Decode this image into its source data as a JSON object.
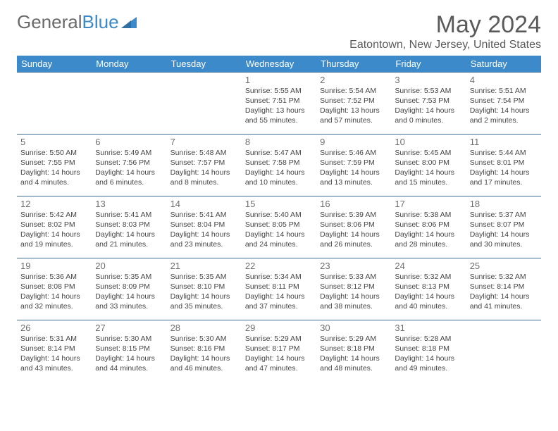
{
  "logo": {
    "text_gray": "General",
    "text_blue": "Blue"
  },
  "title": "May 2024",
  "location": "Eatontown, New Jersey, United States",
  "colors": {
    "header_bg": "#3c8ac9",
    "header_text": "#ffffff",
    "border": "#3c6c94",
    "body_text": "#454545",
    "muted": "#6f6f6f",
    "logo_gray": "#6a6a6a",
    "logo_blue": "#3c8ac9"
  },
  "day_headers": [
    "Sunday",
    "Monday",
    "Tuesday",
    "Wednesday",
    "Thursday",
    "Friday",
    "Saturday"
  ],
  "weeks": [
    [
      null,
      null,
      null,
      {
        "n": "1",
        "sr": "5:55 AM",
        "ss": "7:51 PM",
        "dl": "13 hours and 55 minutes."
      },
      {
        "n": "2",
        "sr": "5:54 AM",
        "ss": "7:52 PM",
        "dl": "13 hours and 57 minutes."
      },
      {
        "n": "3",
        "sr": "5:53 AM",
        "ss": "7:53 PM",
        "dl": "14 hours and 0 minutes."
      },
      {
        "n": "4",
        "sr": "5:51 AM",
        "ss": "7:54 PM",
        "dl": "14 hours and 2 minutes."
      }
    ],
    [
      {
        "n": "5",
        "sr": "5:50 AM",
        "ss": "7:55 PM",
        "dl": "14 hours and 4 minutes."
      },
      {
        "n": "6",
        "sr": "5:49 AM",
        "ss": "7:56 PM",
        "dl": "14 hours and 6 minutes."
      },
      {
        "n": "7",
        "sr": "5:48 AM",
        "ss": "7:57 PM",
        "dl": "14 hours and 8 minutes."
      },
      {
        "n": "8",
        "sr": "5:47 AM",
        "ss": "7:58 PM",
        "dl": "14 hours and 10 minutes."
      },
      {
        "n": "9",
        "sr": "5:46 AM",
        "ss": "7:59 PM",
        "dl": "14 hours and 13 minutes."
      },
      {
        "n": "10",
        "sr": "5:45 AM",
        "ss": "8:00 PM",
        "dl": "14 hours and 15 minutes."
      },
      {
        "n": "11",
        "sr": "5:44 AM",
        "ss": "8:01 PM",
        "dl": "14 hours and 17 minutes."
      }
    ],
    [
      {
        "n": "12",
        "sr": "5:42 AM",
        "ss": "8:02 PM",
        "dl": "14 hours and 19 minutes."
      },
      {
        "n": "13",
        "sr": "5:41 AM",
        "ss": "8:03 PM",
        "dl": "14 hours and 21 minutes."
      },
      {
        "n": "14",
        "sr": "5:41 AM",
        "ss": "8:04 PM",
        "dl": "14 hours and 23 minutes."
      },
      {
        "n": "15",
        "sr": "5:40 AM",
        "ss": "8:05 PM",
        "dl": "14 hours and 24 minutes."
      },
      {
        "n": "16",
        "sr": "5:39 AM",
        "ss": "8:06 PM",
        "dl": "14 hours and 26 minutes."
      },
      {
        "n": "17",
        "sr": "5:38 AM",
        "ss": "8:06 PM",
        "dl": "14 hours and 28 minutes."
      },
      {
        "n": "18",
        "sr": "5:37 AM",
        "ss": "8:07 PM",
        "dl": "14 hours and 30 minutes."
      }
    ],
    [
      {
        "n": "19",
        "sr": "5:36 AM",
        "ss": "8:08 PM",
        "dl": "14 hours and 32 minutes."
      },
      {
        "n": "20",
        "sr": "5:35 AM",
        "ss": "8:09 PM",
        "dl": "14 hours and 33 minutes."
      },
      {
        "n": "21",
        "sr": "5:35 AM",
        "ss": "8:10 PM",
        "dl": "14 hours and 35 minutes."
      },
      {
        "n": "22",
        "sr": "5:34 AM",
        "ss": "8:11 PM",
        "dl": "14 hours and 37 minutes."
      },
      {
        "n": "23",
        "sr": "5:33 AM",
        "ss": "8:12 PM",
        "dl": "14 hours and 38 minutes."
      },
      {
        "n": "24",
        "sr": "5:32 AM",
        "ss": "8:13 PM",
        "dl": "14 hours and 40 minutes."
      },
      {
        "n": "25",
        "sr": "5:32 AM",
        "ss": "8:14 PM",
        "dl": "14 hours and 41 minutes."
      }
    ],
    [
      {
        "n": "26",
        "sr": "5:31 AM",
        "ss": "8:14 PM",
        "dl": "14 hours and 43 minutes."
      },
      {
        "n": "27",
        "sr": "5:30 AM",
        "ss": "8:15 PM",
        "dl": "14 hours and 44 minutes."
      },
      {
        "n": "28",
        "sr": "5:30 AM",
        "ss": "8:16 PM",
        "dl": "14 hours and 46 minutes."
      },
      {
        "n": "29",
        "sr": "5:29 AM",
        "ss": "8:17 PM",
        "dl": "14 hours and 47 minutes."
      },
      {
        "n": "30",
        "sr": "5:29 AM",
        "ss": "8:18 PM",
        "dl": "14 hours and 48 minutes."
      },
      {
        "n": "31",
        "sr": "5:28 AM",
        "ss": "8:18 PM",
        "dl": "14 hours and 49 minutes."
      },
      null
    ]
  ],
  "labels": {
    "sunrise": "Sunrise:",
    "sunset": "Sunset:",
    "daylight": "Daylight:"
  }
}
